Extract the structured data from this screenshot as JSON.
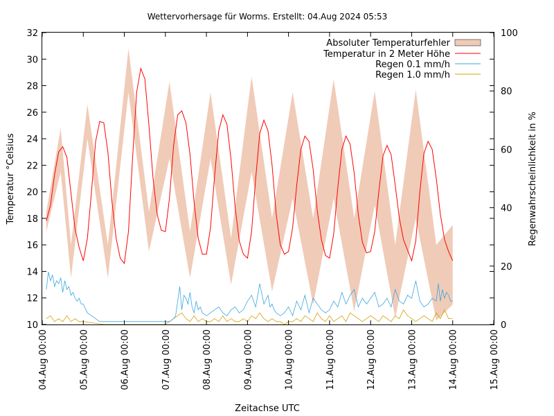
{
  "chart_data": {
    "type": "line",
    "title": "Wettervorhersage für Worms. Erstellt: 04.Aug 2024 05:53",
    "xlabel": "Zeitachse UTC",
    "ylabel": "Temperatur °Celsius",
    "y2label": "Regenwahrscheinlichkeit in %",
    "ylim": [
      10,
      32
    ],
    "y2lim": [
      0,
      100
    ],
    "xlim": [
      "04.Aug 00:00",
      "15.Aug 00:00"
    ],
    "yticks": [
      10,
      12,
      14,
      16,
      18,
      20,
      22,
      24,
      26,
      28,
      30,
      32
    ],
    "y2ticks": [
      0,
      20,
      40,
      60,
      80,
      100
    ],
    "xticks": [
      "04.Aug 00:00",
      "05.Aug 00:00",
      "06.Aug 00:00",
      "07.Aug 00:00",
      "08.Aug 00:00",
      "09.Aug 00:00",
      "10.Aug 00:00",
      "11.Aug 00:00",
      "12.Aug 00:00",
      "13.Aug 00:00",
      "14.Aug 00:00",
      "15.Aug 00:00"
    ],
    "legend_position": "top-right",
    "grid": false,
    "colors": {
      "band": "#f0cbb8",
      "temperature": "#ff0000",
      "rain01": "#3aa6dd",
      "rain10": "#d4a000"
    },
    "series": [
      {
        "name": "Absoluter Temperaturfehler",
        "style": "band",
        "x_days": [
          0.1,
          0.45,
          0.7,
          1.1,
          1.6,
          2.1,
          2.6,
          3.1,
          3.6,
          4.1,
          4.6,
          5.1,
          5.6,
          6.1,
          6.6,
          7.1,
          7.6,
          8.1,
          8.6,
          9.1,
          9.6,
          10.0
        ],
        "lower": [
          17.0,
          21.5,
          13.5,
          24.0,
          13.5,
          27.5,
          15.5,
          22.5,
          13.5,
          22.5,
          13.0,
          21.5,
          12.5,
          19.5,
          11.5,
          19.5,
          11.0,
          19.0,
          10.5,
          18.0,
          10.3,
          11.5
        ],
        "upper": [
          18.5,
          24.8,
          16.0,
          26.6,
          16.0,
          30.8,
          18.5,
          28.3,
          17.0,
          27.5,
          16.5,
          28.7,
          18.0,
          27.5,
          18.0,
          28.5,
          18.0,
          27.6,
          16.0,
          27.7,
          16.0,
          17.5
        ]
      },
      {
        "name": "Temperatur in 2 Meter Höhe",
        "x_days": [
          0.1,
          0.2,
          0.3,
          0.4,
          0.5,
          0.6,
          0.7,
          0.8,
          0.9,
          1.0,
          1.1,
          1.2,
          1.3,
          1.4,
          1.5,
          1.6,
          1.7,
          1.8,
          1.9,
          2.0,
          2.1,
          2.2,
          2.3,
          2.4,
          2.5,
          2.6,
          2.7,
          2.8,
          2.9,
          3.0,
          3.1,
          3.2,
          3.3,
          3.4,
          3.5,
          3.6,
          3.7,
          3.8,
          3.9,
          4.0,
          4.1,
          4.2,
          4.3,
          4.4,
          4.5,
          4.6,
          4.7,
          4.8,
          4.9,
          5.0,
          5.1,
          5.2,
          5.3,
          5.4,
          5.5,
          5.6,
          5.7,
          5.8,
          5.9,
          6.0,
          6.1,
          6.2,
          6.3,
          6.4,
          6.5,
          6.6,
          6.7,
          6.8,
          6.9,
          7.0,
          7.1,
          7.2,
          7.3,
          7.4,
          7.5,
          7.6,
          7.7,
          7.8,
          7.9,
          8.0,
          8.1,
          8.2,
          8.3,
          8.4,
          8.5,
          8.6,
          8.7,
          8.8,
          8.9,
          9.0,
          9.1,
          9.2,
          9.3,
          9.4,
          9.5,
          9.6,
          9.7,
          9.8,
          9.9,
          10.0
        ],
        "values": [
          17.8,
          19.0,
          21.3,
          23.0,
          23.4,
          22.6,
          19.9,
          17.2,
          15.8,
          14.8,
          16.5,
          20.0,
          23.8,
          25.3,
          25.2,
          23.0,
          19.2,
          16.5,
          15.0,
          14.6,
          17.0,
          22.5,
          27.5,
          29.3,
          28.5,
          25.0,
          21.0,
          18.3,
          17.1,
          17.0,
          19.5,
          23.5,
          25.8,
          26.1,
          25.2,
          22.8,
          19.2,
          16.5,
          15.3,
          15.3,
          17.3,
          21.2,
          24.6,
          25.8,
          25.1,
          22.4,
          18.8,
          16.3,
          15.3,
          15.0,
          17.0,
          21.0,
          24.4,
          25.4,
          24.6,
          22.0,
          18.3,
          16.0,
          15.3,
          15.5,
          17.3,
          20.5,
          23.2,
          24.2,
          23.8,
          21.7,
          18.6,
          16.4,
          15.2,
          15.0,
          16.8,
          20.3,
          23.2,
          24.2,
          23.6,
          21.4,
          18.3,
          16.2,
          15.4,
          15.5,
          17.0,
          20.0,
          22.7,
          23.5,
          22.8,
          20.5,
          18.0,
          16.4,
          15.6,
          14.8,
          16.3,
          20.0,
          22.9,
          23.8,
          23.2,
          21.0,
          18.3,
          16.4,
          15.5,
          14.8
        ]
      },
      {
        "name": "Regen 0.1 mm/h",
        "axis": "right",
        "x_days": [
          0.1,
          0.15,
          0.2,
          0.25,
          0.3,
          0.35,
          0.4,
          0.45,
          0.5,
          0.55,
          0.6,
          0.65,
          0.7,
          0.75,
          0.8,
          0.85,
          0.9,
          0.95,
          1.0,
          1.1,
          1.2,
          1.3,
          1.4,
          1.5,
          1.6,
          1.8,
          2.0,
          2.2,
          2.4,
          2.6,
          2.8,
          3.0,
          3.1,
          3.2,
          3.25,
          3.3,
          3.35,
          3.4,
          3.45,
          3.5,
          3.55,
          3.6,
          3.65,
          3.7,
          3.75,
          3.8,
          3.85,
          3.9,
          4.0,
          4.1,
          4.2,
          4.3,
          4.4,
          4.5,
          4.6,
          4.7,
          4.8,
          4.9,
          5.0,
          5.1,
          5.2,
          5.3,
          5.4,
          5.5,
          5.55,
          5.6,
          5.65,
          5.7,
          5.8,
          5.9,
          6.0,
          6.1,
          6.2,
          6.3,
          6.4,
          6.5,
          6.6,
          6.7,
          6.8,
          6.9,
          7.0,
          7.1,
          7.2,
          7.3,
          7.4,
          7.5,
          7.6,
          7.7,
          7.8,
          7.9,
          8.0,
          8.1,
          8.2,
          8.3,
          8.4,
          8.5,
          8.6,
          8.7,
          8.8,
          8.9,
          9.0,
          9.1,
          9.2,
          9.3,
          9.4,
          9.5,
          9.6,
          9.65,
          9.7,
          9.75,
          9.8,
          9.85,
          9.9,
          9.95,
          10.0
        ],
        "values": [
          12,
          18,
          15,
          17,
          13,
          15,
          14,
          16,
          11,
          15,
          12,
          13,
          10,
          11,
          9,
          8,
          9,
          7,
          7,
          4,
          3,
          2,
          1,
          1,
          1,
          1,
          1,
          1,
          1,
          1,
          1,
          1,
          1,
          2,
          3,
          8,
          13,
          5,
          10,
          9,
          7,
          11,
          6,
          4,
          8,
          5,
          6,
          4,
          3,
          4,
          5,
          6,
          4,
          3,
          5,
          6,
          4,
          5,
          8,
          10,
          6,
          14,
          7,
          10,
          6,
          7,
          5,
          4,
          3,
          4,
          6,
          3,
          8,
          5,
          10,
          4,
          9,
          7,
          5,
          4,
          5,
          8,
          6,
          11,
          7,
          10,
          12,
          6,
          9,
          7,
          9,
          11,
          6,
          7,
          9,
          6,
          12,
          8,
          7,
          10,
          9,
          15,
          8,
          6,
          7,
          9,
          8,
          14,
          8,
          12,
          9,
          11,
          10,
          8,
          8
        ]
      },
      {
        "name": "Regen 1.0 mm/h",
        "axis": "right",
        "x_days": [
          0.1,
          0.2,
          0.3,
          0.4,
          0.5,
          0.6,
          0.7,
          0.8,
          0.9,
          1.0,
          1.5,
          2.0,
          2.5,
          3.0,
          3.1,
          3.2,
          3.3,
          3.4,
          3.5,
          3.6,
          3.7,
          3.8,
          3.9,
          4.0,
          4.1,
          4.2,
          4.3,
          4.4,
          4.5,
          4.6,
          4.7,
          4.8,
          4.9,
          5.0,
          5.1,
          5.2,
          5.3,
          5.4,
          5.5,
          5.6,
          5.7,
          5.8,
          5.9,
          6.0,
          6.1,
          6.2,
          6.3,
          6.4,
          6.5,
          6.6,
          6.7,
          6.8,
          6.9,
          7.0,
          7.1,
          7.2,
          7.3,
          7.4,
          7.5,
          7.6,
          7.7,
          7.8,
          7.9,
          8.0,
          8.1,
          8.2,
          8.3,
          8.4,
          8.5,
          8.6,
          8.7,
          8.8,
          8.9,
          9.0,
          9.1,
          9.2,
          9.3,
          9.4,
          9.5,
          9.6,
          9.7,
          9.8,
          9.9,
          10.0
        ],
        "values": [
          2,
          3,
          1,
          2,
          1,
          3,
          1,
          2,
          1,
          1,
          0,
          0,
          0,
          0,
          1,
          2,
          3,
          4,
          2,
          1,
          3,
          1,
          2,
          1,
          1,
          2,
          1,
          3,
          1,
          2,
          1,
          1,
          2,
          1,
          3,
          2,
          4,
          2,
          1,
          2,
          1,
          1,
          0,
          1,
          1,
          2,
          1,
          3,
          2,
          1,
          4,
          2,
          1,
          3,
          1,
          2,
          3,
          1,
          4,
          3,
          2,
          1,
          2,
          3,
          2,
          1,
          3,
          2,
          1,
          3,
          2,
          5,
          3,
          2,
          1,
          2,
          3,
          2,
          1,
          4,
          2,
          5,
          2,
          2
        ]
      }
    ]
  }
}
